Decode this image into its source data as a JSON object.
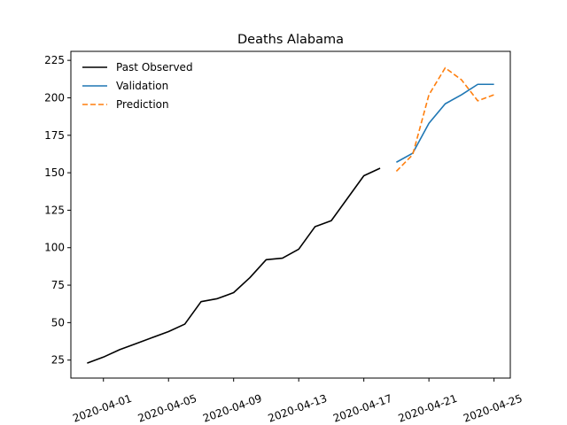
{
  "chart_data": {
    "type": "line",
    "title": "Deaths Alabama",
    "xlabel": "",
    "ylabel": "",
    "grid": false,
    "legend_position": "top-left",
    "x_range": [
      "2020-03-30",
      "2020-04-26"
    ],
    "ylim": [
      13,
      231
    ],
    "x_ticks": [
      "2020-04-01",
      "2020-04-05",
      "2020-04-09",
      "2020-04-13",
      "2020-04-17",
      "2020-04-21",
      "2020-04-25"
    ],
    "y_ticks": [
      25,
      50,
      75,
      100,
      125,
      150,
      175,
      200,
      225
    ],
    "series": [
      {
        "name": "Past Observed",
        "color": "#000000",
        "style": "solid",
        "x": [
          "2020-03-31",
          "2020-04-01",
          "2020-04-02",
          "2020-04-03",
          "2020-04-04",
          "2020-04-05",
          "2020-04-06",
          "2020-04-07",
          "2020-04-08",
          "2020-04-09",
          "2020-04-10",
          "2020-04-11",
          "2020-04-12",
          "2020-04-13",
          "2020-04-14",
          "2020-04-15",
          "2020-04-16",
          "2020-04-17",
          "2020-04-18"
        ],
        "y": [
          23,
          27,
          32,
          36,
          40,
          44,
          49,
          64,
          66,
          70,
          80,
          92,
          93,
          99,
          114,
          118,
          133,
          148,
          153
        ]
      },
      {
        "name": "Validation",
        "color": "#1f77b4",
        "style": "solid",
        "x": [
          "2020-04-19",
          "2020-04-20",
          "2020-04-21",
          "2020-04-22",
          "2020-04-23",
          "2020-04-24",
          "2020-04-25"
        ],
        "y": [
          157,
          163,
          183,
          196,
          202,
          209,
          209
        ]
      },
      {
        "name": "Prediction",
        "color": "#ff7f0e",
        "style": "dashed",
        "x": [
          "2020-04-19",
          "2020-04-20",
          "2020-04-21",
          "2020-04-22",
          "2020-04-23",
          "2020-04-24",
          "2020-04-25"
        ],
        "y": [
          151,
          162,
          202,
          220,
          212,
          198,
          202
        ]
      }
    ]
  }
}
